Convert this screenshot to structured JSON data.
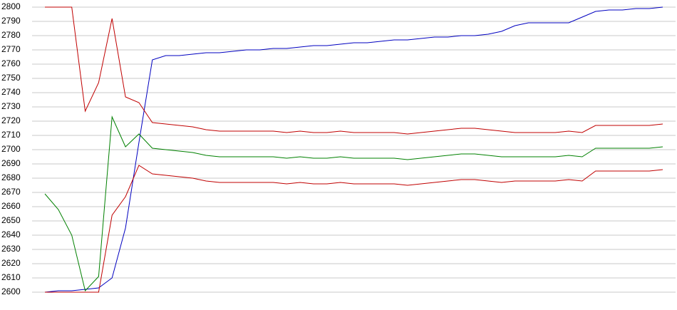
{
  "chart_data": {
    "type": "line",
    "categories": [
      null,
      null,
      null,
      null,
      null,
      null,
      null,
      null,
      null,
      null,
      null,
      null,
      null,
      null,
      null,
      null,
      null,
      null,
      null,
      null,
      null,
      null,
      null,
      null,
      null,
      null,
      null,
      null,
      null,
      null,
      null,
      null,
      null,
      null,
      null,
      null,
      null,
      null,
      null,
      null,
      null,
      null,
      null,
      null,
      null,
      null,
      null
    ],
    "series": [
      {
        "color": "#0000c0",
        "values": [
          2600,
          2601,
          2601,
          2602,
          2603,
          2610,
          2645,
          2705,
          2763,
          2766,
          2766,
          2767,
          2768,
          2768,
          2769,
          2770,
          2770,
          2771,
          2771,
          2772,
          2773,
          2773,
          2774,
          2775,
          2775,
          2776,
          2777,
          2777,
          2778,
          2779,
          2779,
          2780,
          2780,
          2781,
          2783,
          2787,
          2789,
          2789,
          2789,
          2789,
          2793,
          2797,
          2798,
          2798,
          2799,
          2799,
          2800
        ]
      },
      {
        "color": "#c00000",
        "values": [
          2800,
          2800,
          2800,
          2727,
          2747,
          2792,
          2737,
          2733,
          2719,
          2718,
          2717,
          2716,
          2714,
          2713,
          2713,
          2713,
          2713,
          2713,
          2712,
          2713,
          2712,
          2712,
          2713,
          2712,
          2712,
          2712,
          2712,
          2711,
          2712,
          2713,
          2714,
          2715,
          2715,
          2714,
          2713,
          2712,
          2712,
          2712,
          2712,
          2713,
          2712,
          2717,
          2717,
          2717,
          2717,
          2717,
          2718
        ]
      },
      {
        "color": "#008000",
        "values": [
          2669,
          2658,
          2640,
          2601,
          2611,
          2723,
          2702,
          2711,
          2701,
          2700,
          2699,
          2698,
          2696,
          2695,
          2695,
          2695,
          2695,
          2695,
          2694,
          2695,
          2694,
          2694,
          2695,
          2694,
          2694,
          2694,
          2694,
          2693,
          2694,
          2695,
          2696,
          2697,
          2697,
          2696,
          2695,
          2695,
          2695,
          2695,
          2695,
          2696,
          2695,
          2701,
          2701,
          2701,
          2701,
          2701,
          2702
        ]
      },
      {
        "color": "#c00000",
        "values": [
          2600,
          2600,
          2600,
          2600,
          2600,
          2654,
          2667,
          2689,
          2683,
          2682,
          2681,
          2680,
          2678,
          2677,
          2677,
          2677,
          2677,
          2677,
          2676,
          2677,
          2676,
          2676,
          2677,
          2676,
          2676,
          2676,
          2676,
          2675,
          2676,
          2677,
          2678,
          2679,
          2679,
          2678,
          2677,
          2678,
          2678,
          2678,
          2678,
          2679,
          2678,
          2685,
          2685,
          2685,
          2685,
          2685,
          2686
        ]
      }
    ],
    "ylim": [
      2600,
      2800
    ],
    "yticks": [
      2600,
      2610,
      2620,
      2630,
      2640,
      2650,
      2660,
      2670,
      2680,
      2690,
      2700,
      2710,
      2720,
      2730,
      2740,
      2750,
      2760,
      2770,
      2780,
      2790,
      2800
    ],
    "grid": true
  }
}
